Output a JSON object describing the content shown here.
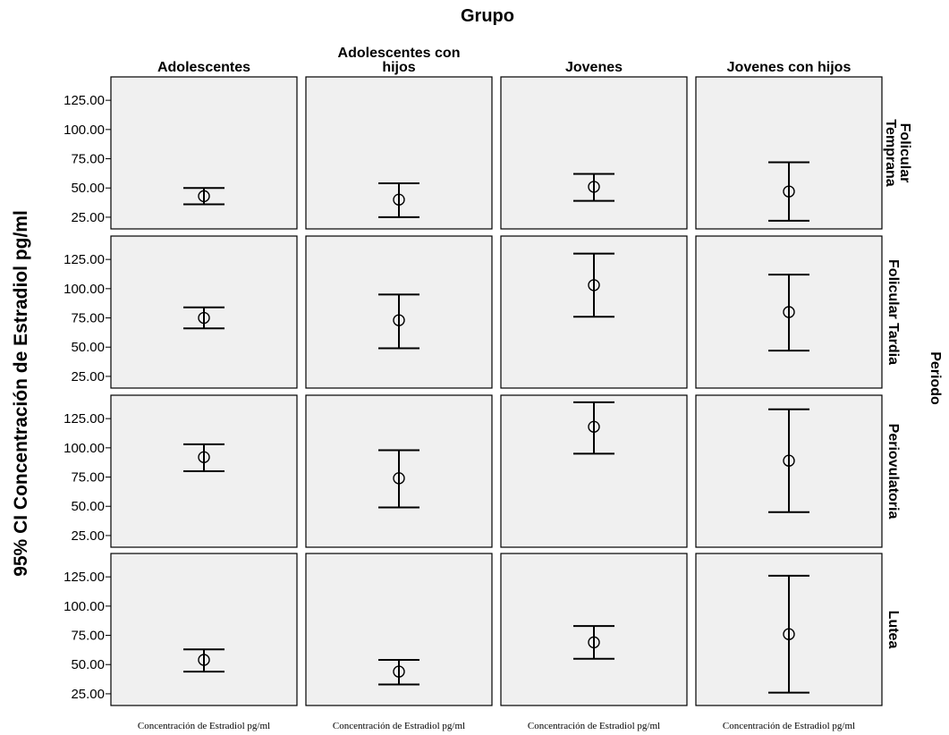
{
  "chart_data": {
    "type": "error-bar-grid",
    "title": "Grupo",
    "ylabel": "95% CI Concentración de Estradiol pg/ml",
    "row_facet_label": "Periodo",
    "columns": [
      "Adolescentes",
      "Adolescentes con hijos",
      "Jovenes",
      "Jovenes con hijos"
    ],
    "rows": [
      "Folicular Temprana",
      "Folicular Tardia",
      "Periovulatoria",
      "Lutea"
    ],
    "x_category_label": "Concentración de Estradiol pg/ml",
    "yticks": [
      "25.00",
      "50.00",
      "75.00",
      "100.00",
      "125.00"
    ],
    "ytick_values": [
      25,
      50,
      75,
      100,
      125
    ],
    "ylim": [
      15,
      145
    ],
    "data": [
      [
        {
          "mean": 43,
          "lower": 36,
          "upper": 50
        },
        {
          "mean": 40,
          "lower": 25,
          "upper": 54
        },
        {
          "mean": 51,
          "lower": 39,
          "upper": 62
        },
        {
          "mean": 47,
          "lower": 22,
          "upper": 72
        }
      ],
      [
        {
          "mean": 75,
          "lower": 66,
          "upper": 84
        },
        {
          "mean": 73,
          "lower": 49,
          "upper": 95
        },
        {
          "mean": 103,
          "lower": 76,
          "upper": 130
        },
        {
          "mean": 80,
          "lower": 47,
          "upper": 112
        }
      ],
      [
        {
          "mean": 92,
          "lower": 80,
          "upper": 103
        },
        {
          "mean": 74,
          "lower": 49,
          "upper": 98
        },
        {
          "mean": 118,
          "lower": 95,
          "upper": 139
        },
        {
          "mean": 89,
          "lower": 45,
          "upper": 133
        }
      ],
      [
        {
          "mean": 54,
          "lower": 44,
          "upper": 63
        },
        {
          "mean": 44,
          "lower": 33,
          "upper": 54
        },
        {
          "mean": 69,
          "lower": 55,
          "upper": 83
        },
        {
          "mean": 76,
          "lower": 26,
          "upper": 126
        }
      ]
    ]
  }
}
